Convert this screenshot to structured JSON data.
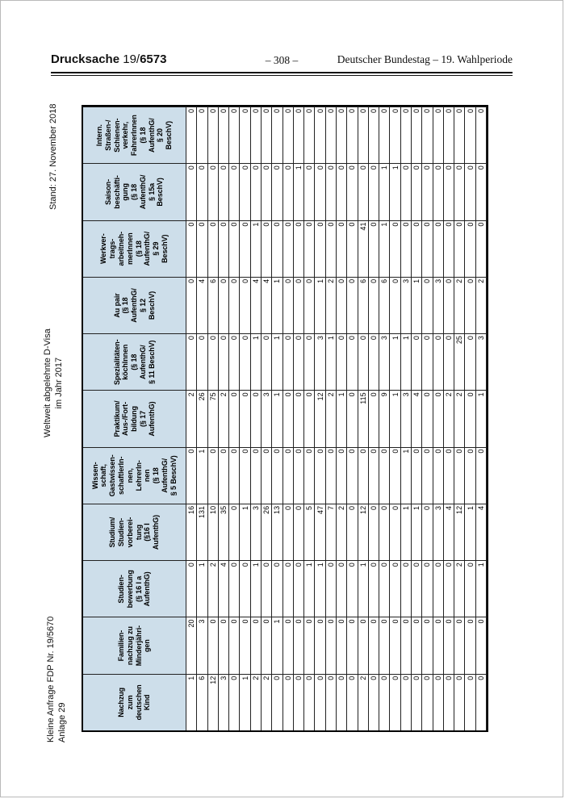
{
  "page_header": {
    "doc_label": "Drucksache",
    "doc_number_prefix": "19/",
    "doc_number": "6573",
    "page_number": "– 308 –",
    "right_text": "Deutscher Bundestag – 19. Wahlperiode"
  },
  "side_labels": {
    "stand": "Stand: 27. November 2018",
    "title": "Weltweit abgelehnte D-Visa\nim Jahr 2017",
    "anfrage": "Kleine Anfrage FDP Nr. 19/5670\nAnlage 29"
  },
  "colors": {
    "header_cell_background": "#cddeea",
    "table_border": "#000000"
  },
  "table": {
    "orientation": "rotated 90° counter-clockwise on page",
    "headers": [
      "Nachzug\nzum\ndeutschen\nKind",
      "Familien-\nnachzug zu\nMinderjähri-\ngen",
      "Studien-\nbewerbung\n(§ 16 I a\nAufenthG)",
      "Studium/\nStudien-\nvorberei-\ntung\n(§16 I\nAufenthG)",
      "Wissen-\nschaft,\nGastwissen-\nschaftlerIn-\nnen,\nLehrerIn-\nnen\n(§ 18\nAufenthG/\n§ 5 BeschV)",
      "Praktikum/\nAus-/Fort-\nbildung\n(§ 17\nAufenthG)",
      "Spezialitäten-\nköchInnen\n(§ 18\nAufenthG/\n§ 11 BeschV)",
      "Au pair\n(§ 18\nAufenthG/\n§ 12\nBeschV)",
      "Werkver-\ntrags-\narbeitneh-\nmerInnen\n(§ 18\nAufenthG/\n§ 29\nBeschV)",
      "Saison-\nbeschäfti-\ngung\n(§ 18\nAufenthG/\n§ 15a\nBeschV)",
      "Intern.\nStraßen-/\nSchienen-\nverkehr,\nFahrerInnen\n(§ 18\nAufenthG/\n§ 20\nBeschV)"
    ],
    "rows": [
      [
        1,
        20,
        0,
        16,
        0,
        2,
        0,
        0,
        0,
        0,
        0
      ],
      [
        6,
        3,
        1,
        131,
        1,
        26,
        0,
        4,
        0,
        0,
        0
      ],
      [
        12,
        0,
        2,
        10,
        0,
        75,
        0,
        6,
        0,
        0,
        0
      ],
      [
        3,
        0,
        4,
        35,
        0,
        2,
        0,
        0,
        0,
        0,
        0
      ],
      [
        0,
        0,
        0,
        0,
        0,
        0,
        0,
        0,
        0,
        0,
        0
      ],
      [
        1,
        0,
        0,
        1,
        0,
        0,
        0,
        0,
        0,
        0,
        0
      ],
      [
        2,
        0,
        1,
        3,
        0,
        0,
        1,
        4,
        1,
        0,
        0
      ],
      [
        2,
        0,
        0,
        26,
        0,
        3,
        0,
        4,
        0,
        0,
        0
      ],
      [
        0,
        1,
        0,
        13,
        0,
        1,
        1,
        1,
        0,
        0,
        0
      ],
      [
        0,
        0,
        0,
        0,
        0,
        0,
        0,
        0,
        0,
        0,
        0
      ],
      [
        0,
        0,
        0,
        0,
        0,
        0,
        0,
        0,
        0,
        1,
        0
      ],
      [
        0,
        0,
        1,
        5,
        0,
        0,
        0,
        0,
        0,
        0,
        0
      ],
      [
        0,
        0,
        1,
        47,
        0,
        12,
        3,
        1,
        0,
        0,
        0
      ],
      [
        0,
        0,
        0,
        7,
        0,
        2,
        1,
        2,
        0,
        0,
        0
      ],
      [
        0,
        0,
        0,
        2,
        0,
        1,
        0,
        0,
        0,
        0,
        0
      ],
      [
        0,
        0,
        0,
        0,
        0,
        0,
        0,
        0,
        0,
        0,
        0
      ],
      [
        2,
        0,
        1,
        12,
        0,
        115,
        0,
        6,
        41,
        0,
        0
      ],
      [
        0,
        0,
        0,
        0,
        0,
        0,
        0,
        0,
        0,
        0,
        0
      ],
      [
        0,
        0,
        0,
        0,
        0,
        9,
        3,
        6,
        1,
        1,
        0
      ],
      [
        0,
        0,
        0,
        0,
        0,
        1,
        1,
        0,
        0,
        1,
        0
      ],
      [
        0,
        0,
        0,
        1,
        1,
        3,
        1,
        3,
        0,
        0,
        0
      ],
      [
        0,
        0,
        0,
        1,
        0,
        4,
        0,
        1,
        0,
        0,
        0
      ],
      [
        0,
        0,
        0,
        0,
        0,
        0,
        0,
        0,
        0,
        0,
        0
      ],
      [
        0,
        0,
        0,
        3,
        0,
        0,
        0,
        3,
        0,
        0,
        0
      ],
      [
        0,
        0,
        0,
        4,
        0,
        2,
        0,
        0,
        0,
        0,
        0
      ],
      [
        0,
        0,
        2,
        12,
        0,
        2,
        25,
        2,
        0,
        0,
        0
      ],
      [
        0,
        0,
        0,
        1,
        0,
        0,
        0,
        0,
        0,
        0,
        0
      ],
      [
        0,
        0,
        1,
        4,
        0,
        1,
        3,
        2,
        0,
        0,
        0
      ]
    ]
  }
}
